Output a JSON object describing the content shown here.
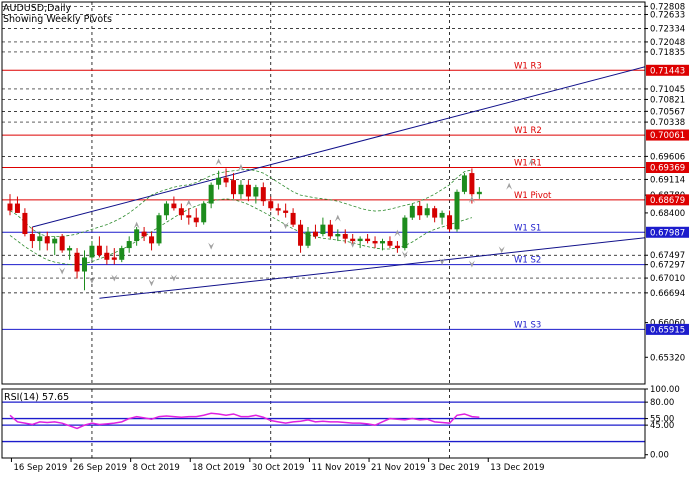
{
  "chart_data": [
    {
      "type": "candlestick",
      "title": "AUDUSD,Daily",
      "subtitle": "Showing Weekly Pivots",
      "ylim": [
        0.6475,
        0.729
      ],
      "x_labels": [
        "16 Sep 2019",
        "26 Sep 2019",
        "8 Oct 2019",
        "18 Oct 2019",
        "30 Oct 2019",
        "11 Nov 2019",
        "21 Nov 2019",
        "3 Dec 2019",
        "13 Dec 2019"
      ],
      "x_label_candle_index": [
        1,
        9,
        17,
        25,
        33,
        41,
        49,
        57,
        65
      ],
      "y_tick_labels": [
        "0.72808",
        "0.72633",
        "0.72334",
        "0.72048",
        "0.71835",
        "0.71045",
        "0.70821",
        "0.70567",
        "0.70338",
        "0.69606",
        "0.69114",
        "0.68780",
        "0.68400",
        "0.67497",
        "0.67297",
        "0.67010",
        "0.66694",
        "0.66060",
        "0.65320"
      ],
      "highlight_labels": [
        {
          "label": "0.71443",
          "value": 0.71443,
          "color": "#dd0000"
        },
        {
          "label": "0.70061",
          "value": 0.70061,
          "color": "#dd0000"
        },
        {
          "label": "0.69369",
          "value": 0.69369,
          "color": "#dd0000"
        },
        {
          "label": "0.68679",
          "value": 0.68679,
          "color": "#dd0000"
        },
        {
          "label": "0.67987",
          "value": 0.67987,
          "color": "#1c1ccc"
        },
        {
          "label": "0.65915",
          "value": 0.65915,
          "color": "#1c1ccc"
        }
      ],
      "pivot_levels": [
        {
          "name": "W1 R3",
          "value": 0.71443,
          "color": "#dd0000"
        },
        {
          "name": "W1 R2",
          "value": 0.70061,
          "color": "#dd0000"
        },
        {
          "name": "W1 R1",
          "value": 0.69369,
          "color": "#dd0000"
        },
        {
          "name": "W1 Pivot",
          "value": 0.68679,
          "color": "#dd0000"
        },
        {
          "name": "W1 S1",
          "value": 0.67987,
          "color": "#1c1ccc"
        },
        {
          "name": "W1 S2",
          "value": 0.67297,
          "color": "#1c1ccc"
        },
        {
          "name": "W1 S3",
          "value": 0.65915,
          "color": "#1c1ccc"
        }
      ],
      "dashed_levels": [
        0.72808,
        0.72633,
        0.72334,
        0.72048,
        0.71835,
        0.71045,
        0.70821,
        0.70567,
        0.70338,
        0.69606,
        0.69114,
        0.67497,
        0.6701,
        0.66694
      ],
      "candles": [
        {
          "o": 0.686,
          "h": 0.688,
          "l": 0.6835,
          "c": 0.6845
        },
        {
          "o": 0.686,
          "h": 0.6875,
          "l": 0.684,
          "c": 0.684
        },
        {
          "o": 0.684,
          "h": 0.685,
          "l": 0.679,
          "c": 0.6795
        },
        {
          "o": 0.6795,
          "h": 0.681,
          "l": 0.6765,
          "c": 0.678
        },
        {
          "o": 0.678,
          "h": 0.68,
          "l": 0.676,
          "c": 0.679
        },
        {
          "o": 0.679,
          "h": 0.68,
          "l": 0.676,
          "c": 0.6775
        },
        {
          "o": 0.6775,
          "h": 0.679,
          "l": 0.675,
          "c": 0.6785
        },
        {
          "o": 0.679,
          "h": 0.6795,
          "l": 0.6755,
          "c": 0.676
        },
        {
          "o": 0.676,
          "h": 0.677,
          "l": 0.674,
          "c": 0.6765
        },
        {
          "o": 0.6755,
          "h": 0.6765,
          "l": 0.67,
          "c": 0.6715
        },
        {
          "o": 0.6715,
          "h": 0.676,
          "l": 0.6675,
          "c": 0.6745
        },
        {
          "o": 0.6745,
          "h": 0.678,
          "l": 0.674,
          "c": 0.677
        },
        {
          "o": 0.677,
          "h": 0.679,
          "l": 0.6745,
          "c": 0.675
        },
        {
          "o": 0.6755,
          "h": 0.677,
          "l": 0.673,
          "c": 0.674
        },
        {
          "o": 0.6745,
          "h": 0.6765,
          "l": 0.673,
          "c": 0.674
        },
        {
          "o": 0.674,
          "h": 0.677,
          "l": 0.6735,
          "c": 0.6765
        },
        {
          "o": 0.6765,
          "h": 0.679,
          "l": 0.6755,
          "c": 0.678
        },
        {
          "o": 0.678,
          "h": 0.681,
          "l": 0.677,
          "c": 0.6805
        },
        {
          "o": 0.68,
          "h": 0.681,
          "l": 0.678,
          "c": 0.679
        },
        {
          "o": 0.679,
          "h": 0.68,
          "l": 0.676,
          "c": 0.6775
        },
        {
          "o": 0.6775,
          "h": 0.684,
          "l": 0.677,
          "c": 0.6835
        },
        {
          "o": 0.6835,
          "h": 0.6865,
          "l": 0.6825,
          "c": 0.686
        },
        {
          "o": 0.686,
          "h": 0.6875,
          "l": 0.6845,
          "c": 0.685
        },
        {
          "o": 0.685,
          "h": 0.686,
          "l": 0.6825,
          "c": 0.6835
        },
        {
          "o": 0.6835,
          "h": 0.685,
          "l": 0.6815,
          "c": 0.683
        },
        {
          "o": 0.683,
          "h": 0.685,
          "l": 0.681,
          "c": 0.682
        },
        {
          "o": 0.682,
          "h": 0.6865,
          "l": 0.6815,
          "c": 0.686
        },
        {
          "o": 0.686,
          "h": 0.6905,
          "l": 0.685,
          "c": 0.69
        },
        {
          "o": 0.69,
          "h": 0.693,
          "l": 0.689,
          "c": 0.6915
        },
        {
          "o": 0.6915,
          "h": 0.6935,
          "l": 0.6895,
          "c": 0.6905
        },
        {
          "o": 0.691,
          "h": 0.6925,
          "l": 0.687,
          "c": 0.688
        },
        {
          "o": 0.688,
          "h": 0.691,
          "l": 0.687,
          "c": 0.69
        },
        {
          "o": 0.69,
          "h": 0.691,
          "l": 0.6865,
          "c": 0.6875
        },
        {
          "o": 0.6875,
          "h": 0.69,
          "l": 0.686,
          "c": 0.6895
        },
        {
          "o": 0.6895,
          "h": 0.6905,
          "l": 0.6855,
          "c": 0.6865
        },
        {
          "o": 0.6865,
          "h": 0.6875,
          "l": 0.6845,
          "c": 0.685
        },
        {
          "o": 0.685,
          "h": 0.686,
          "l": 0.6835,
          "c": 0.6845
        },
        {
          "o": 0.6845,
          "h": 0.686,
          "l": 0.683,
          "c": 0.684
        },
        {
          "o": 0.684,
          "h": 0.685,
          "l": 0.681,
          "c": 0.6815
        },
        {
          "o": 0.6815,
          "h": 0.6825,
          "l": 0.6755,
          "c": 0.677
        },
        {
          "o": 0.677,
          "h": 0.681,
          "l": 0.6765,
          "c": 0.68
        },
        {
          "o": 0.68,
          "h": 0.6815,
          "l": 0.6785,
          "c": 0.679
        },
        {
          "o": 0.6795,
          "h": 0.683,
          "l": 0.679,
          "c": 0.6815
        },
        {
          "o": 0.6815,
          "h": 0.6825,
          "l": 0.6785,
          "c": 0.679
        },
        {
          "o": 0.679,
          "h": 0.6805,
          "l": 0.678,
          "c": 0.6795
        },
        {
          "o": 0.6795,
          "h": 0.6805,
          "l": 0.6775,
          "c": 0.6785
        },
        {
          "o": 0.6785,
          "h": 0.6795,
          "l": 0.677,
          "c": 0.678
        },
        {
          "o": 0.678,
          "h": 0.679,
          "l": 0.6765,
          "c": 0.6785
        },
        {
          "o": 0.6785,
          "h": 0.6795,
          "l": 0.6775,
          "c": 0.678
        },
        {
          "o": 0.678,
          "h": 0.679,
          "l": 0.6765,
          "c": 0.6775
        },
        {
          "o": 0.6775,
          "h": 0.6785,
          "l": 0.676,
          "c": 0.678
        },
        {
          "o": 0.678,
          "h": 0.679,
          "l": 0.6765,
          "c": 0.677
        },
        {
          "o": 0.677,
          "h": 0.678,
          "l": 0.6755,
          "c": 0.6765
        },
        {
          "o": 0.6765,
          "h": 0.6835,
          "l": 0.676,
          "c": 0.683
        },
        {
          "o": 0.683,
          "h": 0.686,
          "l": 0.6825,
          "c": 0.6855
        },
        {
          "o": 0.6855,
          "h": 0.6865,
          "l": 0.6825,
          "c": 0.6835
        },
        {
          "o": 0.6835,
          "h": 0.686,
          "l": 0.683,
          "c": 0.685
        },
        {
          "o": 0.685,
          "h": 0.6855,
          "l": 0.682,
          "c": 0.683
        },
        {
          "o": 0.683,
          "h": 0.6845,
          "l": 0.6815,
          "c": 0.684
        },
        {
          "o": 0.6835,
          "h": 0.6845,
          "l": 0.68,
          "c": 0.6805
        },
        {
          "o": 0.6805,
          "h": 0.689,
          "l": 0.68,
          "c": 0.6885
        },
        {
          "o": 0.6885,
          "h": 0.6925,
          "l": 0.688,
          "c": 0.692
        },
        {
          "o": 0.6925,
          "h": 0.6935,
          "l": 0.686,
          "c": 0.688
        },
        {
          "o": 0.688,
          "h": 0.6895,
          "l": 0.687,
          "c": 0.6885
        }
      ],
      "upper_channel": [
        [
          3,
          0.681
        ],
        [
          35,
          0.6943
        ]
      ],
      "lower_channel": [
        [
          12,
          0.6658
        ],
        [
          92,
          0.6799
        ]
      ],
      "envelope_upper": [
        0.6845,
        0.6835,
        0.682,
        0.6805,
        0.6795,
        0.679,
        0.679,
        0.679,
        0.6792,
        0.6795,
        0.68,
        0.6805,
        0.681,
        0.6815,
        0.6822,
        0.683,
        0.684,
        0.6852,
        0.6865,
        0.6878,
        0.6885,
        0.689,
        0.6895,
        0.6898,
        0.69,
        0.6905,
        0.6912,
        0.692,
        0.6925,
        0.6928,
        0.693,
        0.6932,
        0.6933,
        0.693,
        0.6925,
        0.6915,
        0.6905,
        0.6895,
        0.6885,
        0.6878,
        0.6875,
        0.6872,
        0.687,
        0.6868,
        0.6865,
        0.686,
        0.6855,
        0.685,
        0.6846,
        0.6844,
        0.6845,
        0.6848,
        0.6852,
        0.6856,
        0.686,
        0.6865,
        0.6872,
        0.688,
        0.689,
        0.69,
        0.6915,
        0.6928,
        0.6932
      ],
      "envelope_lower": [
        0.6792,
        0.678,
        0.6768,
        0.6758,
        0.6748,
        0.674,
        0.6735,
        0.6732,
        0.673,
        0.673,
        0.6732,
        0.6736,
        0.6742,
        0.6748,
        0.6755,
        0.6762,
        0.677,
        0.678,
        0.679,
        0.68,
        0.681,
        0.682,
        0.683,
        0.684,
        0.6848,
        0.6855,
        0.686,
        0.6865,
        0.6868,
        0.687,
        0.6868,
        0.6864,
        0.6858,
        0.685,
        0.6842,
        0.6833,
        0.6824,
        0.6815,
        0.6806,
        0.6799,
        0.6793,
        0.6789,
        0.6786,
        0.6784,
        0.6782,
        0.678,
        0.6776,
        0.6772,
        0.6768,
        0.6765,
        0.6763,
        0.6763,
        0.6765,
        0.677,
        0.6778,
        0.6788,
        0.6798,
        0.6805,
        0.681,
        0.6815,
        0.682,
        0.6825,
        0.683
      ],
      "fractals_up": [
        [
          17,
          0.6815
        ],
        [
          24,
          0.6862
        ],
        [
          28,
          0.695
        ],
        [
          31,
          0.6938
        ],
        [
          44,
          0.683
        ],
        [
          52,
          0.6798
        ],
        [
          62,
          0.687
        ],
        [
          67,
          0.6898
        ],
        [
          70,
          0.695
        ]
      ],
      "fractals_down": [
        [
          7,
          0.6715
        ],
        [
          11,
          0.6695
        ],
        [
          14,
          0.67
        ],
        [
          19,
          0.669
        ],
        [
          22,
          0.67
        ],
        [
          27,
          0.6768
        ],
        [
          37,
          0.6812
        ],
        [
          46,
          0.6772
        ],
        [
          53,
          0.675
        ],
        [
          58,
          0.6735
        ],
        [
          62,
          0.673
        ],
        [
          66,
          0.676
        ]
      ]
    },
    {
      "type": "line",
      "title": "RSI(14) 57.65",
      "ylim": [
        -5,
        100
      ],
      "y_tick_labels": [
        "100.00",
        "80.00",
        "55.00",
        "45.00",
        "0.00"
      ],
      "levels": [
        80,
        55,
        45,
        20
      ],
      "series": [
        {
          "values": [
            60,
            50,
            48,
            46,
            50,
            49,
            50,
            48,
            44,
            40,
            45,
            48,
            46,
            47,
            48,
            50,
            55,
            58,
            56,
            54,
            58,
            59,
            58,
            57,
            58,
            58,
            60,
            63,
            62,
            60,
            62,
            58,
            58,
            60,
            57,
            52,
            50,
            48,
            50,
            51,
            53,
            50,
            51,
            50,
            50,
            49,
            48,
            48,
            47,
            45,
            50,
            55,
            54,
            53,
            55,
            53,
            54,
            50,
            49,
            48,
            60,
            62,
            58,
            57
          ]
        }
      ]
    }
  ]
}
